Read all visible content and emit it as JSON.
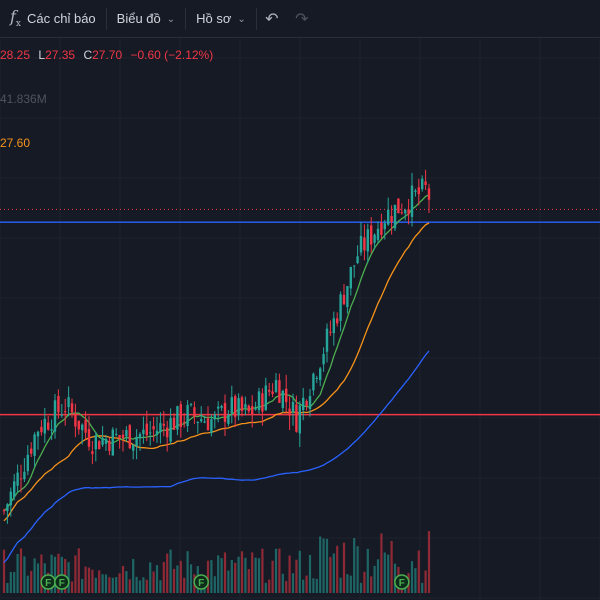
{
  "toolbar": {
    "indicators_label": "Các chỉ báo",
    "chart_label": "Biểu đồ",
    "profile_label": "Hồ sơ",
    "undo_icon": "undo-icon",
    "redo_icon": "redo-icon",
    "fx_icon": "fx-icon"
  },
  "legend": {
    "ohlc": [
      {
        "key": "",
        "value": "28.25"
      },
      {
        "key": "L",
        "value": "27.35"
      },
      {
        "key": "C",
        "value": "27.70"
      },
      {
        "key": "",
        "value": "−0.60 (−2.12%)"
      }
    ],
    "volume_text": "41.836M",
    "ma_value": "27.60"
  },
  "colors": {
    "up": "#26a69a",
    "down": "#f23645",
    "ma_fast": "#4caf50",
    "ma_mid": "#f7931a",
    "ma_slow": "#2962ff",
    "support_line": "#f23645",
    "level_line": "#2962ff",
    "last_price_line": "#f23645",
    "badge": "#4caf50"
  },
  "chart_data": {
    "type": "candlestick",
    "price_range": [
      20,
      32
    ],
    "candles_segments": [
      {
        "from": 0,
        "to": 10,
        "start": 21.0,
        "end": 23.6
      },
      {
        "from": 10,
        "to": 18,
        "start": 23.6,
        "end": 24.3
      },
      {
        "from": 18,
        "to": 26,
        "start": 24.3,
        "end": 23.2
      },
      {
        "from": 26,
        "to": 42,
        "start": 23.2,
        "end": 23.4
      },
      {
        "from": 42,
        "to": 54,
        "start": 23.4,
        "end": 24.0
      },
      {
        "from": 54,
        "to": 62,
        "start": 24.0,
        "end": 23.8
      },
      {
        "from": 62,
        "to": 66,
        "start": 23.8,
        "end": 24.2
      },
      {
        "from": 66,
        "to": 72,
        "start": 24.2,
        "end": 24.0
      },
      {
        "from": 72,
        "to": 80,
        "start": 24.0,
        "end": 25.0
      },
      {
        "from": 80,
        "to": 86,
        "start": 25.0,
        "end": 23.9
      },
      {
        "from": 86,
        "to": 96,
        "start": 23.9,
        "end": 26.6
      },
      {
        "from": 96,
        "to": 104,
        "start": 26.6,
        "end": 29.0
      },
      {
        "from": 104,
        "to": 112,
        "start": 29.0,
        "end": 30.2
      },
      {
        "from": 112,
        "to": 118,
        "start": 30.2,
        "end": 30.6
      },
      {
        "from": 118,
        "to": 124,
        "start": 30.6,
        "end": 31.0
      },
      {
        "from": 124,
        "to": 126,
        "start": 31.0,
        "end": 30.6
      }
    ],
    "candle_count": 126,
    "support_level": 24.0,
    "resistance_level": 30.0,
    "last_price": 30.4,
    "dividend_markers": [
      13,
      17,
      58,
      117
    ],
    "dividend_label": "F"
  }
}
